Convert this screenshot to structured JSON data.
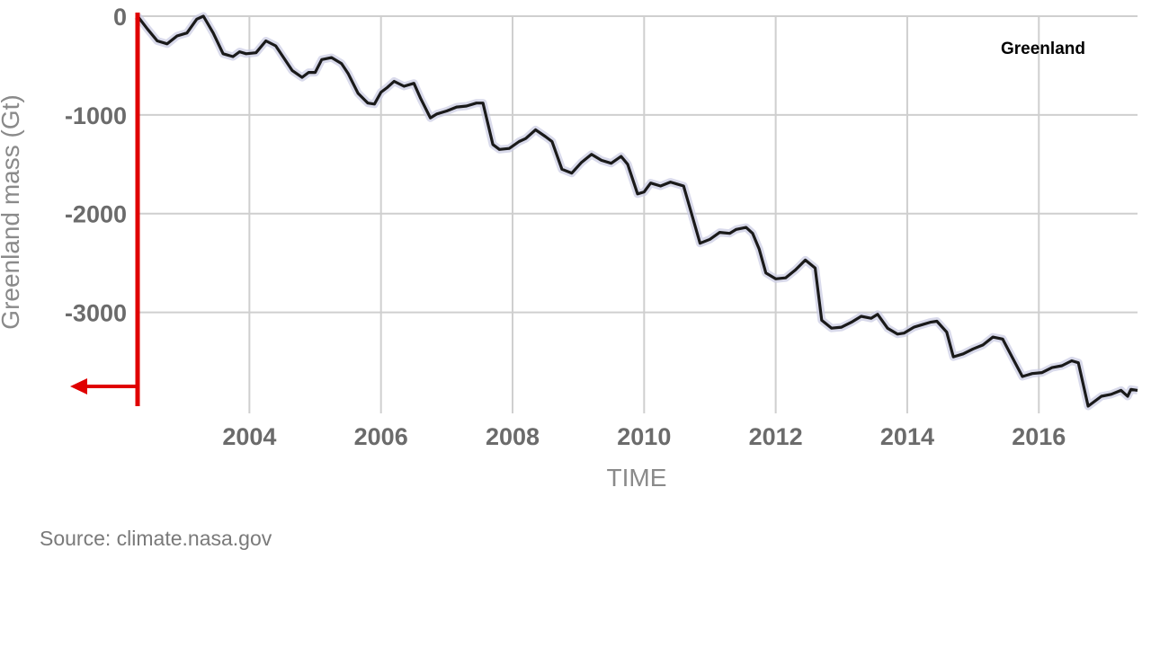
{
  "source": "Source: climate.nasa.gov",
  "colors": {
    "line": "#1a1a1a",
    "grid": "#cfcfcf",
    "annotation": "#e00000",
    "band": "#c9cbe3"
  },
  "chart_data": {
    "type": "line",
    "title": "Greenland",
    "xlabel": "TIME",
    "ylabel": "Greenland mass (Gt)",
    "xlim": [
      2002.3,
      2017.5
    ],
    "ylim": [
      -3950,
      0
    ],
    "yticks": [
      0,
      -1000,
      -2000,
      -3000
    ],
    "xticks": [
      2004,
      2006,
      2008,
      2010,
      2012,
      2014,
      2016
    ],
    "grid": true,
    "series": [
      {
        "x": [
          2002.3,
          2002.45,
          2002.6,
          2002.75,
          2002.9,
          2003.05,
          2003.2,
          2003.3,
          2003.45,
          2003.6,
          2003.75,
          2003.85,
          2003.95,
          2004.1,
          2004.25,
          2004.4,
          2004.5,
          2004.65,
          2004.8,
          2004.9,
          2005.0,
          2005.1,
          2005.25,
          2005.4,
          2005.5,
          2005.65,
          2005.8,
          2005.9,
          2006.0,
          2006.1,
          2006.2,
          2006.35,
          2006.5,
          2006.6,
          2006.75,
          2006.85,
          2007.0,
          2007.15,
          2007.3,
          2007.45,
          2007.55,
          2007.7,
          2007.8,
          2007.95,
          2008.1,
          2008.2,
          2008.35,
          2008.5,
          2008.6,
          2008.75,
          2008.9,
          2009.05,
          2009.2,
          2009.35,
          2009.5,
          2009.65,
          2009.75,
          2009.9,
          2010.0,
          2010.1,
          2010.25,
          2010.4,
          2010.5,
          2010.6,
          2010.7,
          2010.85,
          2011.0,
          2011.15,
          2011.3,
          2011.4,
          2011.55,
          2011.65,
          2011.75,
          2011.85,
          2012.0,
          2012.15,
          2012.3,
          2012.45,
          2012.6,
          2012.7,
          2012.85,
          2013.0,
          2013.15,
          2013.3,
          2013.45,
          2013.55,
          2013.7,
          2013.85,
          2013.95,
          2014.1,
          2014.25,
          2014.35,
          2014.45,
          2014.6,
          2014.7,
          2014.85,
          2015.0,
          2015.15,
          2015.3,
          2015.45,
          2015.6,
          2015.75,
          2015.9,
          2016.05,
          2016.2,
          2016.35,
          2016.5,
          2016.6,
          2016.75,
          2016.95,
          2017.1,
          2017.25,
          2017.35,
          2017.4,
          2017.5
        ],
        "y": [
          0,
          -130,
          -250,
          -280,
          -200,
          -170,
          -30,
          0,
          -170,
          -380,
          -410,
          -360,
          -380,
          -370,
          -250,
          -300,
          -400,
          -550,
          -620,
          -570,
          -570,
          -440,
          -420,
          -480,
          -580,
          -780,
          -880,
          -890,
          -770,
          -720,
          -660,
          -710,
          -680,
          -830,
          -1030,
          -990,
          -960,
          -920,
          -910,
          -880,
          -880,
          -1300,
          -1350,
          -1340,
          -1270,
          -1240,
          -1150,
          -1220,
          -1270,
          -1550,
          -1590,
          -1480,
          -1400,
          -1460,
          -1490,
          -1420,
          -1500,
          -1800,
          -1780,
          -1690,
          -1720,
          -1680,
          -1700,
          -1720,
          -1950,
          -2300,
          -2260,
          -2190,
          -2200,
          -2160,
          -2140,
          -2200,
          -2360,
          -2600,
          -2660,
          -2650,
          -2570,
          -2470,
          -2550,
          -3080,
          -3160,
          -3150,
          -3100,
          -3040,
          -3060,
          -3020,
          -3160,
          -3220,
          -3210,
          -3150,
          -3120,
          -3100,
          -3090,
          -3200,
          -3450,
          -3420,
          -3370,
          -3330,
          -3250,
          -3270,
          -3460,
          -3650,
          -3620,
          -3610,
          -3560,
          -3540,
          -3490,
          -3510,
          -3950,
          -3850,
          -3830,
          -3790,
          -3850,
          -3780,
          -3790
        ]
      }
    ]
  }
}
